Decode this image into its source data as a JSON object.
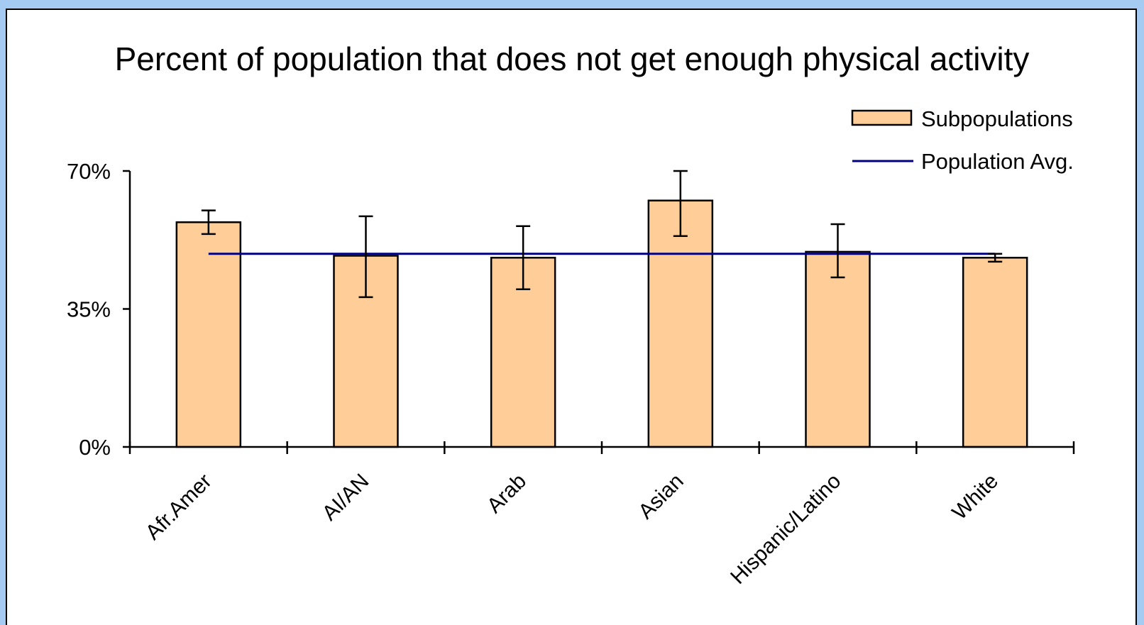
{
  "chart_data": {
    "type": "bar",
    "title": "Percent of population that does not get enough physical activity",
    "categories": [
      "Afr.Amer",
      "AI/AN",
      "Arab",
      "Asian",
      "Hispanic/Latino",
      "White"
    ],
    "series": [
      {
        "name": "Subpopulations",
        "values": [
          57,
          48.5,
          48,
          62.5,
          49.5,
          48
        ],
        "error_low": [
          54,
          38,
          40,
          53.5,
          43,
          47
        ],
        "error_high": [
          60,
          58.5,
          56,
          70,
          56.5,
          49
        ]
      },
      {
        "name": "Population Avg.",
        "type": "line",
        "value": 49
      }
    ],
    "y_ticks": [
      "0%",
      "35%",
      "70%"
    ],
    "y_tick_values": [
      0,
      35,
      70
    ],
    "ylim": [
      0,
      70
    ],
    "xlabel": "",
    "ylabel": "",
    "grid": false,
    "legend_position": "top-right",
    "colors": {
      "bar_fill": "#fecd98",
      "bar_stroke": "#000000",
      "avg_line": "#000080",
      "background": "#a6cbf2"
    }
  }
}
